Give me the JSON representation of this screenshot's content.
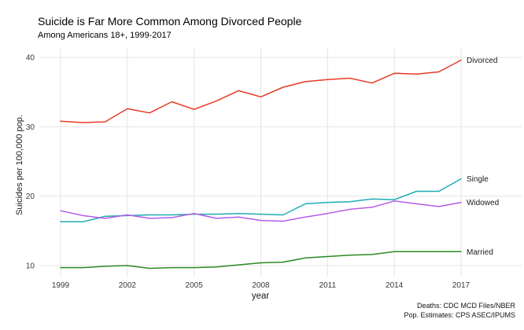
{
  "header": {
    "title": "Suicide is Far More Common Among Divorced People",
    "subtitle": "Among Americans 18+, 1999-2017"
  },
  "caption": {
    "line1": "Deaths: CDC MCD Files/NBER",
    "line2": "Pop. Estimates: CPS ASEC/IPUMS"
  },
  "chart_data": {
    "type": "line",
    "title": "Suicide is Far More Common Among Divorced People",
    "subtitle": "Among Americans 18+, 1999-2017",
    "xlabel": "year",
    "ylabel": "Suicides per 100,000 pop.",
    "grid": "major-only",
    "legend_position": "line-end-labels",
    "background": "#ffffff",
    "gridline_color": "#e5e5e5",
    "xlim": [
      1999,
      2017
    ],
    "ylim": [
      10,
      40
    ],
    "x_ticks": [
      1999,
      2002,
      2005,
      2008,
      2011,
      2014,
      2017
    ],
    "y_ticks": [
      10,
      20,
      30,
      40
    ],
    "x": [
      1999,
      2000,
      2001,
      2002,
      2003,
      2004,
      2005,
      2006,
      2007,
      2008,
      2009,
      2010,
      2011,
      2012,
      2013,
      2014,
      2015,
      2016,
      2017
    ],
    "series": [
      {
        "name": "Divorced",
        "color": "#e63b25",
        "values": [
          30.8,
          30.6,
          30.7,
          32.6,
          32.0,
          33.6,
          32.5,
          33.7,
          35.2,
          34.3,
          35.7,
          36.5,
          36.8,
          37.0,
          36.3,
          37.7,
          37.6,
          37.9,
          39.6
        ]
      },
      {
        "name": "Single",
        "color": "#1dadb5",
        "values": [
          16.3,
          16.3,
          17.1,
          17.2,
          17.3,
          17.3,
          17.4,
          17.4,
          17.5,
          17.4,
          17.3,
          18.9,
          19.1,
          19.2,
          19.6,
          19.5,
          20.7,
          20.7,
          22.5
        ]
      },
      {
        "name": "Widowed",
        "color": "#b55ce6",
        "values": [
          17.9,
          17.2,
          16.8,
          17.3,
          16.8,
          16.9,
          17.5,
          16.8,
          17.0,
          16.5,
          16.4,
          17.0,
          17.5,
          18.1,
          18.4,
          19.3,
          18.9,
          18.5,
          19.1
        ]
      },
      {
        "name": "Married",
        "color": "#2b8a22",
        "values": [
          9.7,
          9.7,
          9.9,
          10.0,
          9.6,
          9.7,
          9.7,
          9.8,
          10.1,
          10.4,
          10.5,
          11.1,
          11.3,
          11.5,
          11.6,
          12.0,
          12.0,
          12.0,
          12.0
        ]
      }
    ]
  }
}
